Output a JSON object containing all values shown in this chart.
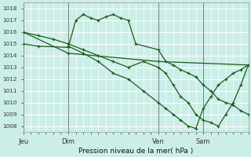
{
  "title": "Pression niveau de la mer( hPa )",
  "bg_color": "#cceee8",
  "grid_color": "#ffffff",
  "line_color": "#1a5c1a",
  "ylim": [
    1007.5,
    1018.5
  ],
  "yticks": [
    1008,
    1009,
    1010,
    1011,
    1012,
    1013,
    1014,
    1015,
    1016,
    1017,
    1018
  ],
  "xtick_labels": [
    "Jeu",
    "Dim",
    "Ven",
    "Sam"
  ],
  "xtick_positions": [
    0,
    24,
    72,
    96
  ],
  "xlim": [
    0,
    120
  ],
  "line1_x": [
    0,
    24,
    72,
    120
  ],
  "line1_y": [
    1016.0,
    1014.2,
    1013.5,
    1013.2
  ],
  "line2_x": [
    0,
    8,
    24,
    28,
    32,
    36,
    40,
    44,
    48,
    52,
    56,
    60,
    72,
    76,
    80,
    84,
    88,
    92,
    96,
    100,
    104,
    108,
    112,
    116,
    120
  ],
  "line2_y": [
    1015.0,
    1014.8,
    1014.7,
    1017.0,
    1017.5,
    1017.2,
    1017.0,
    1017.3,
    1017.5,
    1017.2,
    1017.0,
    1015.0,
    1014.5,
    1013.5,
    1013.2,
    1012.8,
    1012.5,
    1012.2,
    1011.5,
    1011.0,
    1010.3,
    1010.0,
    1009.8,
    1009.3,
    1009.0
  ],
  "line3_x": [
    0,
    8,
    16,
    24,
    32,
    40,
    48,
    56,
    64,
    72,
    76,
    80,
    84,
    88,
    92,
    96,
    100,
    104,
    108,
    112,
    116,
    120
  ],
  "line3_y": [
    1016.0,
    1015.7,
    1015.4,
    1015.0,
    1014.5,
    1014.0,
    1013.5,
    1013.0,
    1013.5,
    1013.0,
    1012.5,
    1011.5,
    1010.5,
    1010.0,
    1009.0,
    1008.5,
    1008.3,
    1008.0,
    1009.0,
    1010.0,
    1011.5,
    1013.2
  ],
  "line4_x": [
    24,
    32,
    40,
    48,
    56,
    64,
    72,
    76,
    80,
    84,
    88,
    92,
    96,
    100,
    104,
    108,
    112,
    116,
    120
  ],
  "line4_y": [
    1014.8,
    1014.2,
    1013.5,
    1012.5,
    1012.0,
    1011.0,
    1010.0,
    1009.5,
    1009.0,
    1008.5,
    1008.0,
    1007.8,
    1009.5,
    1010.5,
    1011.5,
    1012.0,
    1012.5,
    1012.8,
    1013.2
  ]
}
